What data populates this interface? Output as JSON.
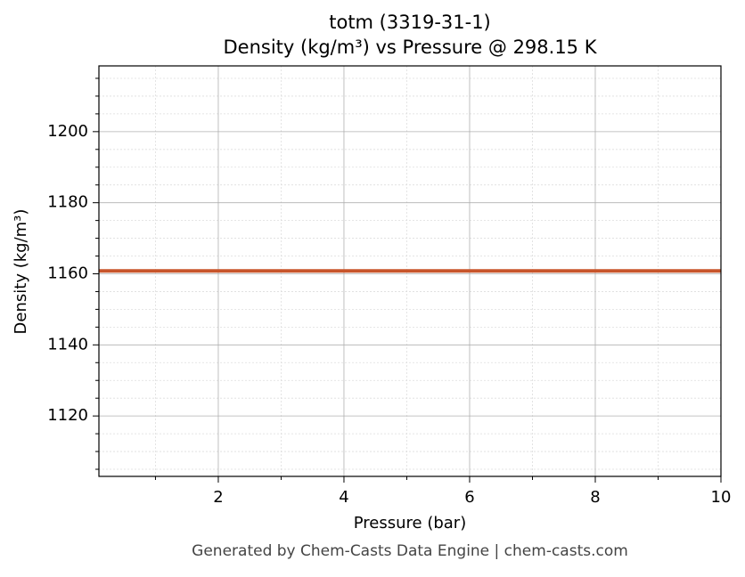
{
  "chart_data": {
    "type": "line",
    "title": "totm (3319-31-1)",
    "subtitle": "Density (kg/m³) vs Pressure @ 298.15 K",
    "x_label": "Pressure (bar)",
    "y_label": "Density (kg/m³)",
    "footer": "Generated by Chem-Casts Data Engine | chem-casts.com",
    "x": [
      0.1,
      10
    ],
    "series": [
      {
        "name": "Density",
        "color": "#c8552b",
        "values": [
          1160.8,
          1160.8
        ]
      }
    ],
    "xlim": [
      0.1,
      10
    ],
    "ylim": [
      1103,
      1218.5
    ],
    "xticks": [
      2,
      4,
      6,
      8,
      10
    ],
    "yticks": [
      1120,
      1140,
      1160,
      1180,
      1200
    ],
    "xminorticks": [
      1,
      3,
      5,
      7,
      9
    ],
    "yminorticks": [
      1105,
      1110,
      1115,
      1125,
      1130,
      1135,
      1145,
      1150,
      1155,
      1165,
      1170,
      1175,
      1185,
      1190,
      1195,
      1205,
      1210,
      1215
    ],
    "grid": true
  }
}
